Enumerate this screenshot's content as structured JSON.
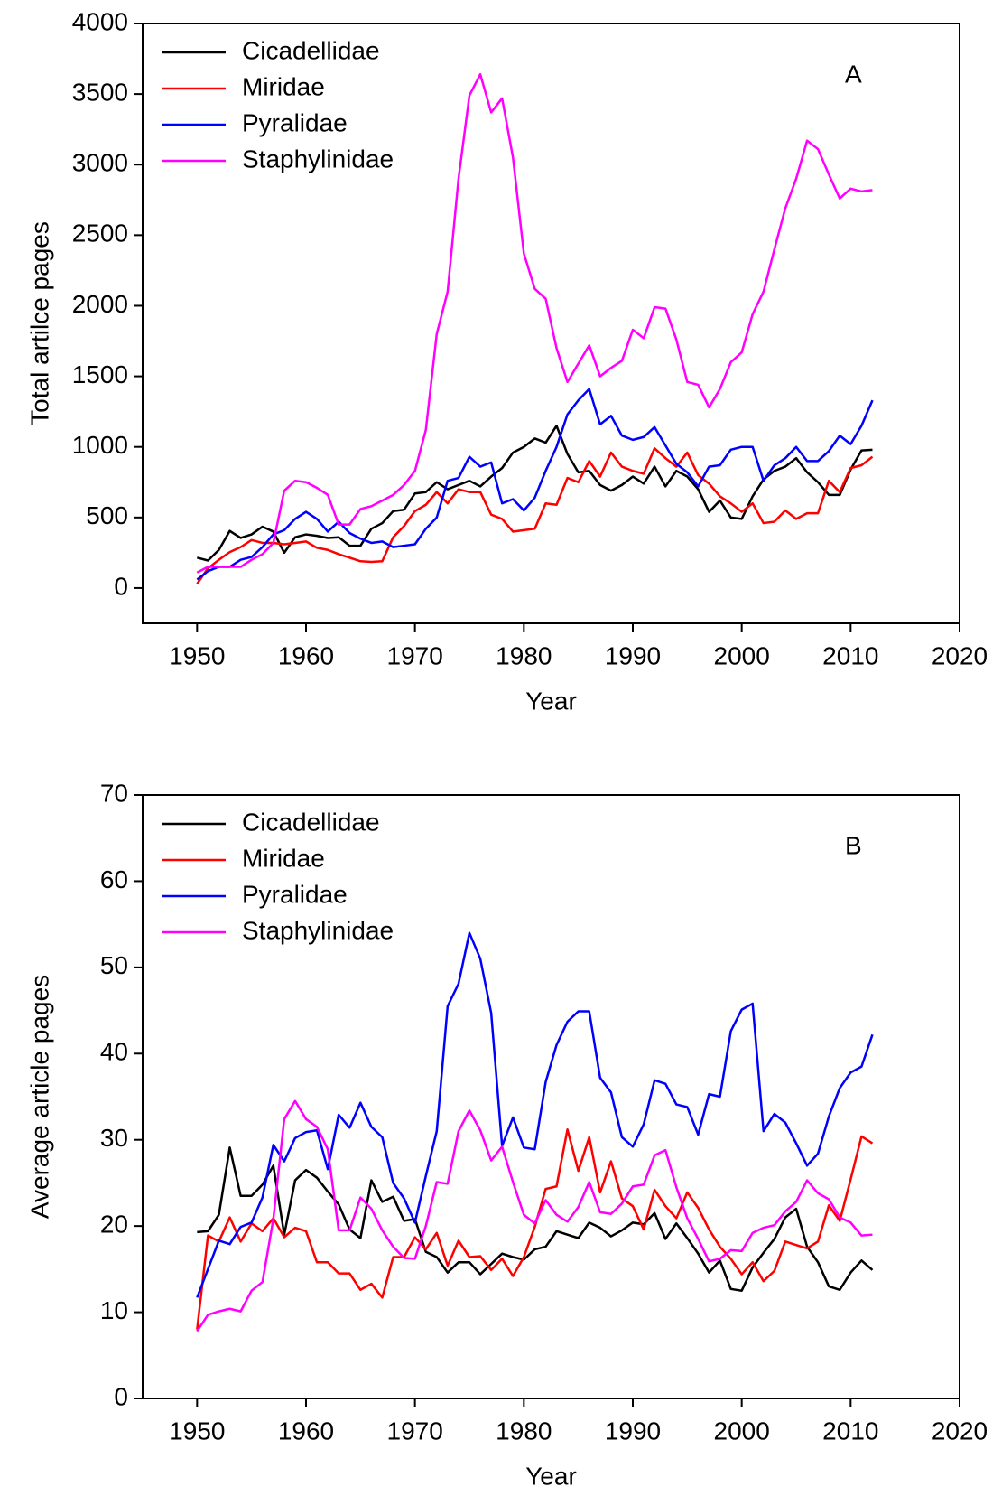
{
  "chart_data": [
    {
      "type": "line",
      "annotation": "A",
      "x_label": "Year",
      "y_label": "Total artilce pages",
      "legend": "upper left",
      "xlim": [
        1945,
        2020
      ],
      "xticks": [
        1950,
        1960,
        1970,
        1980,
        1990,
        2000,
        2010,
        2020
      ],
      "ylim": [
        -250,
        4000
      ],
      "yticks": [
        0,
        500,
        1000,
        1500,
        2000,
        2500,
        3000,
        3500,
        4000
      ],
      "x": [
        1950,
        1951,
        1952,
        1953,
        1954,
        1955,
        1956,
        1957,
        1958,
        1959,
        1960,
        1961,
        1962,
        1963,
        1964,
        1965,
        1966,
        1967,
        1968,
        1969,
        1970,
        1971,
        1972,
        1973,
        1974,
        1975,
        1976,
        1977,
        1978,
        1979,
        1980,
        1981,
        1982,
        1983,
        1984,
        1985,
        1986,
        1987,
        1988,
        1989,
        1990,
        1991,
        1992,
        1993,
        1994,
        1995,
        1996,
        1997,
        1998,
        1999,
        2000,
        2001,
        2002,
        2003,
        2004,
        2005,
        2006,
        2007,
        2008,
        2009,
        2010,
        2011,
        2012
      ],
      "series": [
        {
          "name": "Cicadellidae",
          "color": "#000000",
          "values": [
            215,
            195,
            270,
            405,
            355,
            380,
            435,
            400,
            250,
            360,
            380,
            370,
            355,
            360,
            300,
            300,
            420,
            460,
            545,
            555,
            670,
            680,
            750,
            700,
            730,
            760,
            720,
            790,
            850,
            960,
            1000,
            1060,
            1030,
            1150,
            950,
            820,
            830,
            730,
            690,
            730,
            790,
            740,
            860,
            720,
            830,
            790,
            700,
            540,
            620,
            500,
            490,
            650,
            770,
            830,
            860,
            920,
            820,
            750,
            660,
            660,
            840,
            975,
            980
          ]
        },
        {
          "name": "Miridae",
          "color": "#ff0000",
          "values": [
            30,
            140,
            200,
            255,
            290,
            340,
            320,
            320,
            310,
            320,
            330,
            285,
            270,
            240,
            215,
            190,
            185,
            190,
            360,
            440,
            545,
            590,
            680,
            600,
            700,
            680,
            680,
            520,
            490,
            400,
            410,
            420,
            600,
            590,
            780,
            750,
            900,
            790,
            960,
            860,
            830,
            810,
            990,
            920,
            860,
            960,
            800,
            740,
            650,
            600,
            540,
            600,
            460,
            470,
            550,
            490,
            530,
            530,
            760,
            680,
            850,
            870,
            930
          ]
        },
        {
          "name": "Pyralidae",
          "color": "#0000ff",
          "values": [
            60,
            120,
            150,
            150,
            200,
            220,
            290,
            380,
            410,
            490,
            540,
            490,
            400,
            470,
            390,
            350,
            320,
            330,
            290,
            300,
            310,
            420,
            500,
            760,
            780,
            930,
            860,
            890,
            600,
            630,
            550,
            640,
            830,
            1000,
            1230,
            1330,
            1410,
            1160,
            1220,
            1080,
            1050,
            1070,
            1140,
            1010,
            880,
            820,
            720,
            860,
            870,
            980,
            1000,
            1000,
            760,
            870,
            920,
            1000,
            900,
            900,
            970,
            1080,
            1020,
            1150,
            1330
          ]
        },
        {
          "name": "Staphylinidae",
          "color": "#ff00ff",
          "values": [
            110,
            150,
            150,
            150,
            150,
            200,
            240,
            320,
            690,
            760,
            750,
            710,
            660,
            450,
            450,
            560,
            580,
            620,
            660,
            730,
            830,
            1120,
            1800,
            2100,
            2900,
            3490,
            3640,
            3370,
            3470,
            3050,
            2370,
            2120,
            2050,
            1700,
            1460,
            1590,
            1720,
            1500,
            1560,
            1610,
            1830,
            1770,
            1990,
            1980,
            1760,
            1460,
            1440,
            1280,
            1410,
            1600,
            1670,
            1940,
            2100,
            2400,
            2690,
            2900,
            3170,
            3110,
            2930,
            2760,
            2830,
            2810,
            2820
          ]
        }
      ]
    },
    {
      "type": "line",
      "annotation": "B",
      "x_label": "Year",
      "y_label": "Average article pages",
      "legend": "upper left",
      "xlim": [
        1945,
        2020
      ],
      "xticks": [
        1950,
        1960,
        1970,
        1980,
        1990,
        2000,
        2010,
        2020
      ],
      "ylim": [
        0,
        70
      ],
      "yticks": [
        0,
        10,
        20,
        30,
        40,
        50,
        60,
        70
      ],
      "x": [
        1950,
        1951,
        1952,
        1953,
        1954,
        1955,
        1956,
        1957,
        1958,
        1959,
        1960,
        1961,
        1962,
        1963,
        1964,
        1965,
        1966,
        1967,
        1968,
        1969,
        1970,
        1971,
        1972,
        1973,
        1974,
        1975,
        1976,
        1977,
        1978,
        1979,
        1980,
        1981,
        1982,
        1983,
        1984,
        1985,
        1986,
        1987,
        1988,
        1989,
        1990,
        1991,
        1992,
        1993,
        1994,
        1995,
        1996,
        1997,
        1998,
        1999,
        2000,
        2001,
        2002,
        2003,
        2004,
        2005,
        2006,
        2007,
        2008,
        2009,
        2010,
        2011,
        2012
      ],
      "series": [
        {
          "name": "Cicadellidae",
          "color": "#000000",
          "values": [
            19.3,
            19.4,
            21.3,
            29.1,
            23.5,
            23.5,
            24.8,
            27,
            19,
            25.3,
            26.5,
            25.6,
            24,
            22.5,
            19.6,
            18.6,
            25.3,
            22.8,
            23.4,
            20.6,
            20.8,
            17,
            16.4,
            14.6,
            15.8,
            15.8,
            14.4,
            15.6,
            16.8,
            16.4,
            16.1,
            17.3,
            17.6,
            19.4,
            19,
            18.6,
            20.4,
            19.8,
            18.8,
            19.5,
            20.4,
            20.2,
            21.5,
            18.5,
            20.3,
            18.6,
            16.8,
            14.6,
            16,
            12.7,
            12.5,
            15.2,
            16.9,
            18.5,
            21,
            22,
            17.6,
            15.8,
            13,
            12.6,
            14.6,
            16,
            14.9
          ]
        },
        {
          "name": "Miridae",
          "color": "#ff0000",
          "values": [
            8,
            18.9,
            18.2,
            21,
            18.2,
            20.3,
            19.4,
            20.9,
            18.7,
            19.8,
            19.4,
            15.8,
            15.8,
            14.5,
            14.5,
            12.6,
            13.3,
            11.7,
            16.4,
            16.4,
            18.7,
            17.3,
            19.2,
            15.4,
            18.3,
            16.4,
            16.5,
            14.9,
            16.2,
            14.2,
            16.4,
            19.9,
            24.3,
            24.6,
            31.2,
            26.4,
            30.3,
            23.9,
            27.5,
            23.2,
            22.3,
            19.6,
            24.2,
            22.3,
            20.9,
            23.9,
            22.1,
            19.6,
            17.6,
            16.2,
            14.4,
            15.8,
            13.6,
            14.8,
            18.2,
            17.8,
            17.4,
            18.2,
            22.4,
            20.6,
            25.4,
            30.4,
            29.6
          ]
        },
        {
          "name": "Pyralidae",
          "color": "#0000ff",
          "values": [
            11.7,
            15,
            18.3,
            17.9,
            19.9,
            20.4,
            23.3,
            29.4,
            27.5,
            30.2,
            30.9,
            31.1,
            26.6,
            32.9,
            31.4,
            34.3,
            31.5,
            30.3,
            25,
            23.2,
            20.4,
            25.8,
            31,
            45.5,
            48.1,
            54,
            51,
            44.7,
            29.3,
            32.6,
            29.1,
            28.9,
            36.7,
            41,
            43.7,
            44.9,
            44.9,
            37.2,
            35.5,
            30.3,
            29.2,
            31.8,
            36.9,
            36.5,
            34.1,
            33.8,
            30.6,
            35.3,
            35,
            42.6,
            45.1,
            45.8,
            31,
            33,
            32,
            29.6,
            27,
            28.4,
            32.7,
            36,
            37.8,
            38.5,
            42.2
          ]
        },
        {
          "name": "Staphylinidae",
          "color": "#ff00ff",
          "values": [
            7.8,
            9.7,
            10.1,
            10.4,
            10.1,
            12.5,
            13.5,
            20.8,
            32.4,
            34.5,
            32.4,
            31.5,
            28.9,
            19.5,
            19.5,
            23.3,
            22,
            19.5,
            17.6,
            16.3,
            16.2,
            20,
            25.1,
            24.9,
            31,
            33.4,
            31.1,
            27.6,
            29.2,
            25.1,
            21.3,
            20.3,
            23,
            21.3,
            20.5,
            22.2,
            25.1,
            21.6,
            21.4,
            22.6,
            24.6,
            24.8,
            28.2,
            28.8,
            24.5,
            20.9,
            18.5,
            15.9,
            16.2,
            17.2,
            17.1,
            19.2,
            19.8,
            20.1,
            21.7,
            22.8,
            25.3,
            23.8,
            23.1,
            21,
            20.4,
            18.9,
            19
          ]
        }
      ]
    }
  ]
}
